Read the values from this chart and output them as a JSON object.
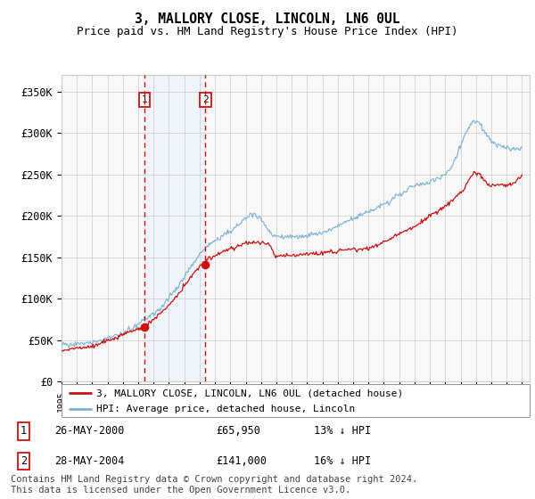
{
  "title": "3, MALLORY CLOSE, LINCOLN, LN6 0UL",
  "subtitle": "Price paid vs. HM Land Registry's House Price Index (HPI)",
  "ylim": [
    0,
    370000
  ],
  "yticks": [
    0,
    50000,
    100000,
    150000,
    200000,
    250000,
    300000,
    350000
  ],
  "ytick_labels": [
    "£0",
    "£50K",
    "£100K",
    "£150K",
    "£200K",
    "£250K",
    "£300K",
    "£350K"
  ],
  "purchase1_year": 2000.4,
  "purchase1_price": 65950,
  "purchase2_year": 2004.38,
  "purchase2_price": 141000,
  "legend_entry1": "3, MALLORY CLOSE, LINCOLN, LN6 0UL (detached house)",
  "legend_entry2": "HPI: Average price, detached house, Lincoln",
  "table_rows": [
    {
      "num": "1",
      "date": "26-MAY-2000",
      "price": "£65,950",
      "hpi": "13% ↓ HPI"
    },
    {
      "num": "2",
      "date": "28-MAY-2004",
      "price": "£141,000",
      "hpi": "16% ↓ HPI"
    }
  ],
  "footer": "Contains HM Land Registry data © Crown copyright and database right 2024.\nThis data is licensed under the Open Government Licence v3.0.",
  "hpi_color": "#7aafd4",
  "price_color": "#cc1111",
  "shade_color": "#ddeeff",
  "grid_color": "#cccccc",
  "bg_color": "#f8f8f8"
}
